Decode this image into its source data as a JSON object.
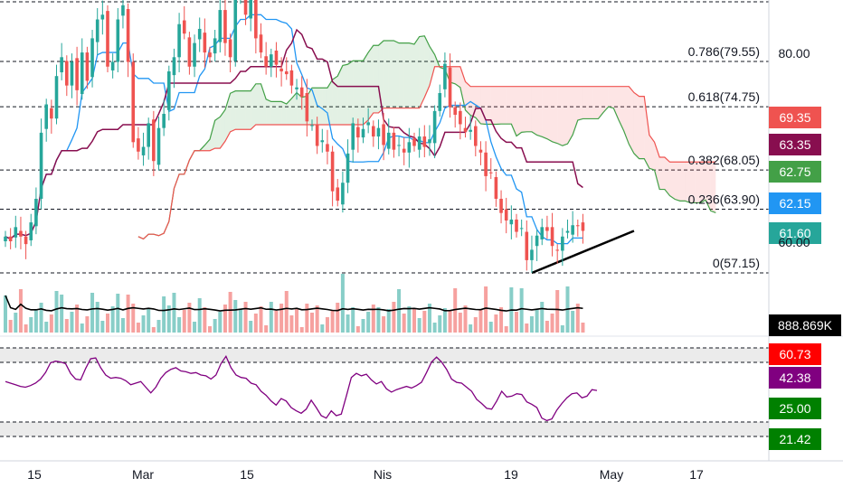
{
  "chart_data": {
    "type": "candlestick",
    "title": "",
    "price_axis_ticks": [
      "80.00",
      "60.00"
    ],
    "x_axis_ticks": [
      "15",
      "Mar",
      "15",
      "Nis",
      "19",
      "May",
      "17"
    ],
    "fibonacci_levels": [
      {
        "label": "0.786(79.55)",
        "value": 79.55
      },
      {
        "label": "0.618(74.75)",
        "value": 74.75
      },
      {
        "label": "0.382(68.05)",
        "value": 68.05
      },
      {
        "label": "0.236(63.90)",
        "value": 63.9
      },
      {
        "label": "0(57.15)",
        "value": 57.15
      }
    ],
    "price_tags": [
      {
        "value": "69.35",
        "color": "#ef5350"
      },
      {
        "value": "63.35",
        "color": "#880e4f"
      },
      {
        "value": "62.75",
        "color": "#43a047"
      },
      {
        "value": "62.15",
        "color": "#2196f3"
      },
      {
        "value": "61.60",
        "color": "#26a69a"
      }
    ],
    "volume_tag": {
      "value": "888.869K",
      "color": "#000000"
    },
    "indicator_tags": [
      {
        "value": "60.73",
        "color": "#ff0000"
      },
      {
        "value": "42.38",
        "color": "#800080"
      },
      {
        "value": "25.00",
        "color": "#008000"
      },
      {
        "value": "21.42",
        "color": "#008000"
      }
    ],
    "closes": [
      61,
      60.5,
      62,
      61,
      60.2,
      62.5,
      65,
      72,
      75,
      73.5,
      78,
      80,
      77,
      79.5,
      76.5,
      80.5,
      77.5,
      82,
      84,
      84.5,
      79,
      79.5,
      84,
      85.5,
      79.5,
      71,
      70,
      70.5,
      73,
      69,
      72.5,
      74,
      78.5,
      80,
      83.5,
      82.5,
      79,
      81.5,
      83,
      80.5,
      80,
      82,
      85,
      81.5,
      80,
      86.5,
      88,
      84.5,
      89,
      82,
      80.5,
      79,
      80.3,
      79.2,
      78.5,
      78.2,
      77,
      76.8,
      75.8,
      73.2,
      72.8,
      70.6,
      71.2,
      70,
      65.8,
      64.8,
      66.7,
      69.8,
      73,
      71.5,
      72.4,
      73.1,
      71.6,
      72.5,
      70.7,
      72,
      70.2,
      70.7,
      69.9,
      71,
      70.6,
      71.6,
      70.5,
      71.3,
      74.3,
      76.2,
      79.3,
      74.7,
      73.9,
      72.9,
      72.1,
      72.3,
      70.6,
      69.9,
      67.4,
      67.7,
      65,
      63.5,
      62.7,
      62.8,
      61.5,
      61.9,
      58.5,
      59.6,
      61.1,
      62,
      61.6,
      60,
      59.5,
      61,
      61.6,
      62.2,
      62.1,
      61.6
    ],
    "ind_series": [
      0.62,
      0.6,
      0.58,
      0.56,
      0.55,
      0.57,
      0.6,
      0.65,
      0.73,
      0.85,
      0.87,
      0.86,
      0.84,
      0.72,
      0.65,
      0.64,
      0.78,
      0.9,
      0.91,
      0.79,
      0.7,
      0.66,
      0.67,
      0.66,
      0.63,
      0.58,
      0.6,
      0.62,
      0.55,
      0.48,
      0.55,
      0.66,
      0.73,
      0.77,
      0.79,
      0.75,
      0.74,
      0.72,
      0.73,
      0.7,
      0.69,
      0.65,
      0.7,
      0.84,
      0.93,
      0.79,
      0.7,
      0.67,
      0.66,
      0.6,
      0.58,
      0.5,
      0.45,
      0.38,
      0.33,
      0.41,
      0.38,
      0.3,
      0.26,
      0.23,
      0.28,
      0.39,
      0.3,
      0.2,
      0.17,
      0.26,
      0.2,
      0.22,
      0.44,
      0.67,
      0.72,
      0.69,
      0.71,
      0.64,
      0.59,
      0.62,
      0.53,
      0.49,
      0.52,
      0.54,
      0.56,
      0.54,
      0.57,
      0.61,
      0.73,
      0.86,
      0.92,
      0.86,
      0.77,
      0.65,
      0.61,
      0.6,
      0.55,
      0.5,
      0.4,
      0.35,
      0.29,
      0.28,
      0.38,
      0.5,
      0.43,
      0.44,
      0.47,
      0.46,
      0.37,
      0.34,
      0.3,
      0.17,
      0.14,
      0.16,
      0.27,
      0.35,
      0.42,
      0.47,
      0.48,
      0.42,
      0.44,
      0.52,
      0.51
    ]
  }
}
